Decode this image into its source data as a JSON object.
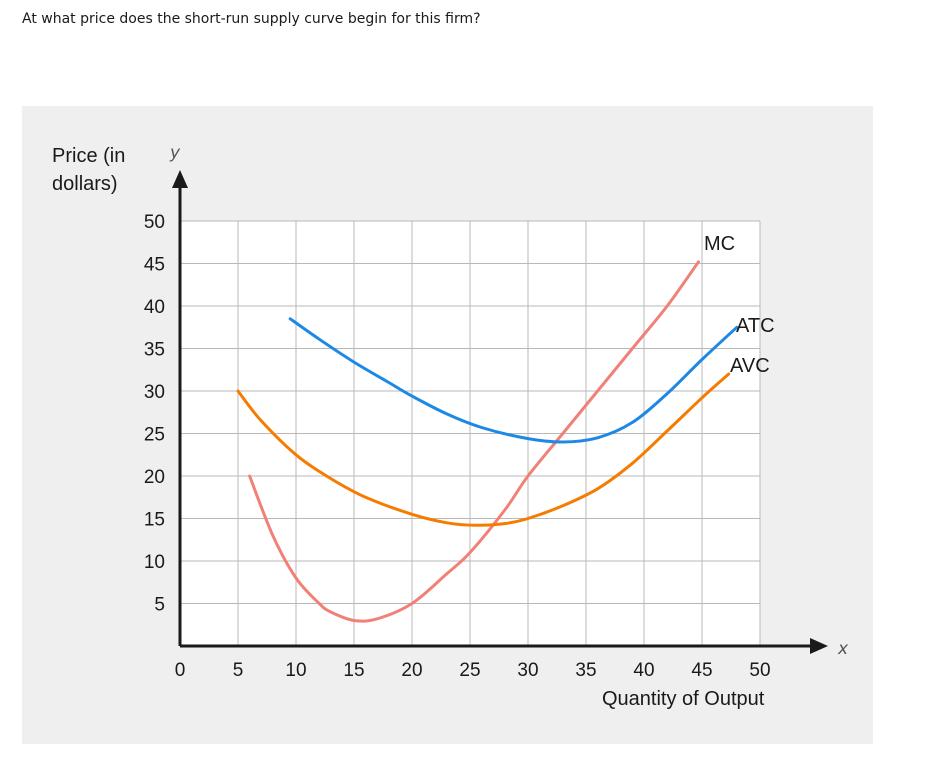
{
  "question": "At what price does the short-run supply curve begin for this firm?",
  "chart_data": {
    "type": "line",
    "ylabel_lines": [
      "Price (in",
      "dollars)"
    ],
    "y_axis_letter": "y",
    "x_axis_letter": "x",
    "xlabel": "Quantity of Output",
    "xlim": [
      0,
      50
    ],
    "ylim": [
      0,
      50
    ],
    "x_ticks": [
      "0",
      "5",
      "10",
      "15",
      "20",
      "25",
      "30",
      "35",
      "40",
      "45",
      "50"
    ],
    "y_ticks": [
      "50",
      "45",
      "40",
      "35",
      "30",
      "25",
      "20",
      "15",
      "10",
      "5"
    ],
    "grid": true,
    "series": [
      {
        "name": "MC",
        "color": "#f08078",
        "points": [
          [
            6,
            20
          ],
          [
            8,
            13
          ],
          [
            10,
            8
          ],
          [
            12,
            5
          ],
          [
            13,
            4
          ],
          [
            15,
            3
          ],
          [
            17,
            3.2
          ],
          [
            20,
            5
          ],
          [
            23,
            8.5
          ],
          [
            25,
            11
          ],
          [
            28,
            16
          ],
          [
            30,
            20
          ],
          [
            33,
            25
          ],
          [
            36,
            30
          ],
          [
            39,
            35
          ],
          [
            42,
            40
          ],
          [
            44.7,
            45.2
          ]
        ]
      },
      {
        "name": "ATC",
        "color": "#1e88e5",
        "points": [
          [
            9.5,
            38.5
          ],
          [
            12,
            36.1
          ],
          [
            15,
            33.4
          ],
          [
            18,
            31
          ],
          [
            20,
            29.4
          ],
          [
            23,
            27.3
          ],
          [
            26,
            25.7
          ],
          [
            30,
            24.4
          ],
          [
            33,
            24
          ],
          [
            36,
            24.5
          ],
          [
            39,
            26.3
          ],
          [
            42,
            29.7
          ],
          [
            45,
            33.7
          ],
          [
            48,
            37.5
          ]
        ]
      },
      {
        "name": "AVC",
        "color": "#f57c00",
        "points": [
          [
            5,
            30
          ],
          [
            7,
            26.5
          ],
          [
            10,
            22.5
          ],
          [
            13,
            19.7
          ],
          [
            16,
            17.5
          ],
          [
            20,
            15.5
          ],
          [
            23,
            14.5
          ],
          [
            25.5,
            14.2
          ],
          [
            28,
            14.4
          ],
          [
            30,
            15
          ],
          [
            33,
            16.5
          ],
          [
            36,
            18.5
          ],
          [
            39,
            21.5
          ],
          [
            42,
            25.3
          ],
          [
            45,
            29.2
          ],
          [
            47.3,
            32
          ]
        ]
      }
    ]
  }
}
